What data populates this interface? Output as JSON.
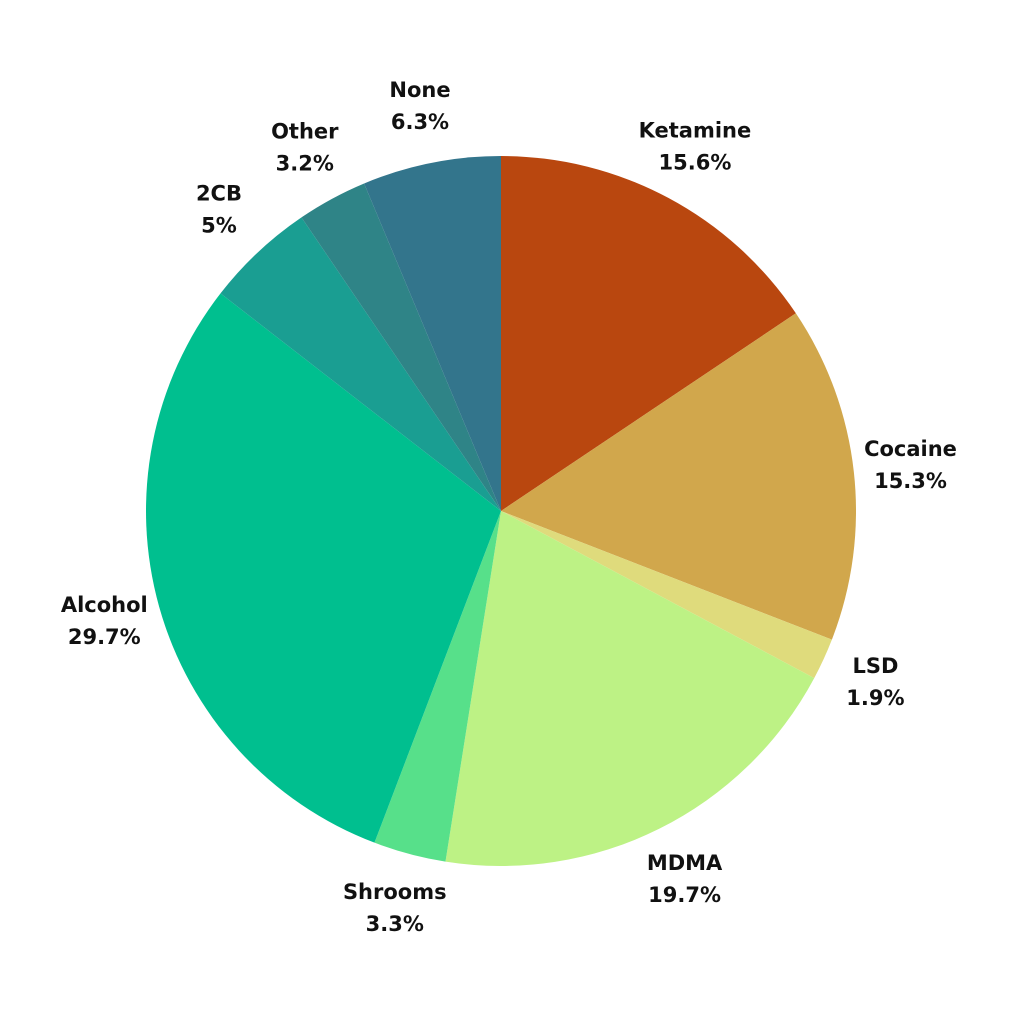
{
  "chart_data": {
    "type": "pie",
    "categories": [
      "Ketamine",
      "Cocaine",
      "LSD",
      "MDMA",
      "Shrooms",
      "Alcohol",
      "2CB",
      "Other",
      "None"
    ],
    "values": [
      15.6,
      15.3,
      1.9,
      19.7,
      3.3,
      29.7,
      5,
      3.2,
      6.3
    ],
    "value_labels": [
      "15.6%",
      "15.3%",
      "1.9%",
      "19.7%",
      "3.3%",
      "29.7%",
      "5%",
      "3.2%",
      "6.3%"
    ],
    "colors": [
      "#b9470f",
      "#d1a74c",
      "#dfdb7c",
      "#bdf285",
      "#57e08a",
      "#00bf8f",
      "#1a9e92",
      "#2f8487",
      "#33758c"
    ]
  }
}
